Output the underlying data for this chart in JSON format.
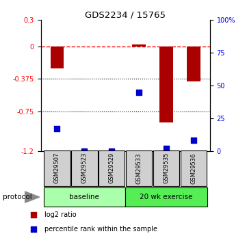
{
  "title": "GDS2234 / 15765",
  "samples": [
    "GSM29507",
    "GSM29523",
    "GSM29529",
    "GSM29533",
    "GSM29535",
    "GSM29536"
  ],
  "log2_ratio": [
    -0.255,
    -0.005,
    0.0,
    0.02,
    -0.87,
    -0.4
  ],
  "percentile_rank": [
    17,
    0,
    0,
    45,
    2,
    8
  ],
  "ylim_left": [
    -1.2,
    0.3
  ],
  "ylim_right": [
    0,
    100
  ],
  "yticks_left": [
    -1.2,
    -0.75,
    -0.375,
    0,
    0.3
  ],
  "ytick_labels_left": [
    "-1.2",
    "-0.75",
    "-0.375",
    "0",
    "0.3"
  ],
  "yticks_right": [
    0,
    25,
    50,
    75,
    100
  ],
  "ytick_labels_right": [
    "0",
    "25",
    "50",
    "75",
    "100%"
  ],
  "hline_y": 0,
  "dotted_lines": [
    -0.375,
    -0.75
  ],
  "groups": [
    {
      "label": "baseline",
      "start": 0,
      "end": 2,
      "color": "#aaffaa"
    },
    {
      "label": "20 wk exercise",
      "start": 3,
      "end": 5,
      "color": "#55ee55"
    }
  ],
  "bar_color": "#aa0000",
  "dot_color": "#0000cc",
  "bar_width": 0.5,
  "dot_size": 28,
  "protocol_label": "protocol",
  "legend_bar_label": "log2 ratio",
  "legend_dot_label": "percentile rank within the sample",
  "background_color": "#ffffff"
}
